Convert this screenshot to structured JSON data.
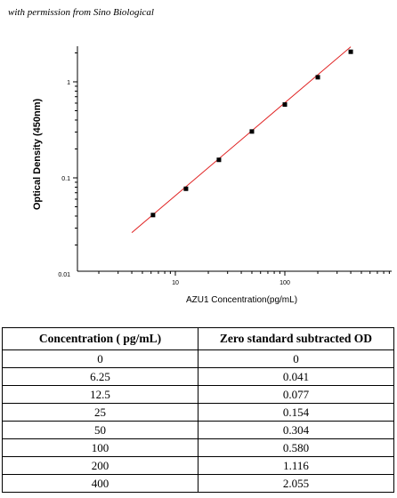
{
  "credit": "with permission from Sino Biological",
  "chart_data": {
    "type": "scatter",
    "xlabel": "AZU1 Concentration(pg/mL)",
    "ylabel": "Optical Density (450nm)",
    "x_scale": "log",
    "y_scale": "log",
    "xlim": [
      1,
      500
    ],
    "ylim": [
      0.01,
      3
    ],
    "x_ticks": [
      {
        "value": 10,
        "label": "10"
      },
      {
        "value": 100,
        "label": "100"
      }
    ],
    "y_ticks": [
      {
        "value": 0.01,
        "label": "0.01"
      },
      {
        "value": 0.1,
        "label": "0.1"
      },
      {
        "value": 1,
        "label": "1"
      }
    ],
    "points": [
      {
        "x": 6.25,
        "y": 0.041
      },
      {
        "x": 12.5,
        "y": 0.077
      },
      {
        "x": 25,
        "y": 0.154
      },
      {
        "x": 50,
        "y": 0.304
      },
      {
        "x": 100,
        "y": 0.58
      },
      {
        "x": 200,
        "y": 1.116
      },
      {
        "x": 400,
        "y": 2.055
      }
    ],
    "fit_line": {
      "color": "#e02020",
      "x": [
        4,
        400
      ]
    },
    "marker_color": "#000000",
    "grid": false
  },
  "table": {
    "headers": [
      "Concentration ( pg/mL)",
      "Zero standard subtracted OD"
    ],
    "rows": [
      [
        "0",
        "0"
      ],
      [
        "6.25",
        "0.041"
      ],
      [
        "12.5",
        "0.077"
      ],
      [
        "25",
        "0.154"
      ],
      [
        "50",
        "0.304"
      ],
      [
        "100",
        "0.580"
      ],
      [
        "200",
        "1.116"
      ],
      [
        "400",
        "2.055"
      ]
    ]
  }
}
